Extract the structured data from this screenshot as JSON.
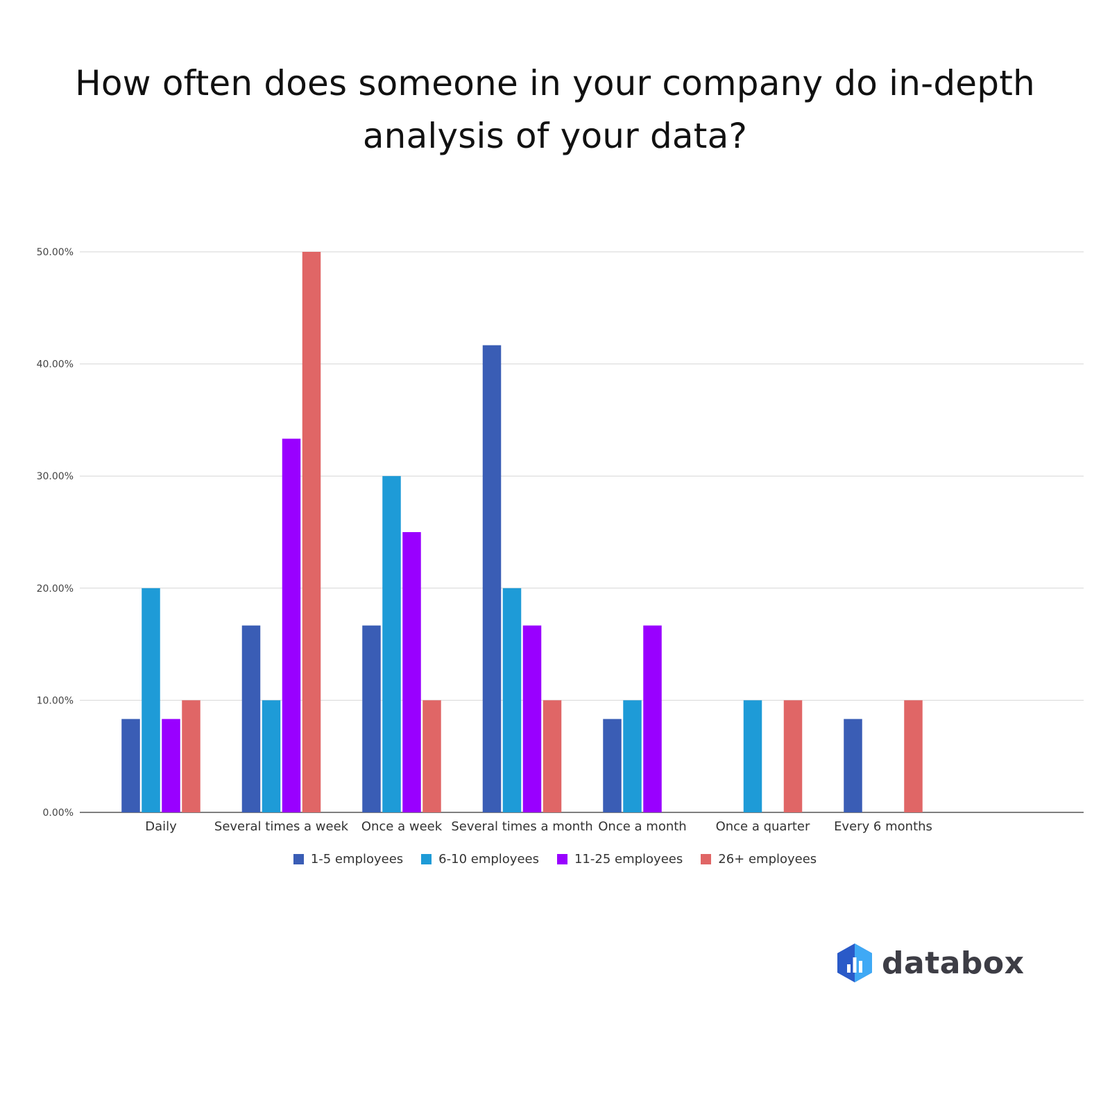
{
  "chart_data": {
    "type": "bar",
    "title_lines": [
      "How often does someone in your company do in-depth",
      "analysis of your data?"
    ],
    "categories": [
      "Daily",
      "Several times a week",
      "Once a week",
      "Several times a month",
      "Once a month",
      "Once a quarter",
      "Every 6 months"
    ],
    "series": [
      {
        "name": "1-5 employees",
        "color": "#3a5db5",
        "values": [
          8.33,
          16.67,
          16.67,
          41.67,
          8.33,
          0,
          8.33
        ]
      },
      {
        "name": "6-10 employees",
        "color": "#1e9bd7",
        "values": [
          20.0,
          10.0,
          30.0,
          20.0,
          10.0,
          10.0,
          0
        ]
      },
      {
        "name": "11-25 employees",
        "color": "#9900ff",
        "values": [
          8.33,
          33.33,
          25.0,
          16.67,
          16.67,
          0,
          0
        ]
      },
      {
        "name": "26+ employees",
        "color": "#e06666",
        "values": [
          10.0,
          50.0,
          10.0,
          10.0,
          0,
          10.0,
          10.0
        ]
      }
    ],
    "y_ticks": [
      "0.00%",
      "10.00%",
      "20.00%",
      "30.00%",
      "40.00%",
      "50.00%"
    ],
    "ylim": [
      0,
      50
    ],
    "grid": true,
    "legend_position": "bottom"
  },
  "branding": {
    "logo_text": "databox",
    "logo_icon": "databox-hexagon-icon",
    "logo_colors": [
      "#2a5ac8",
      "#3fa9f5"
    ]
  }
}
